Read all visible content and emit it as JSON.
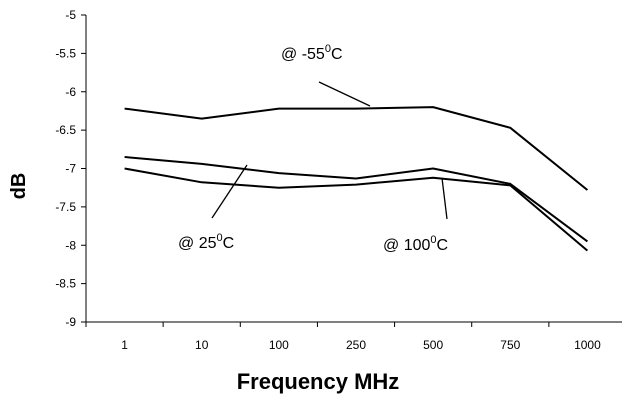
{
  "chart_data": {
    "type": "line",
    "title": "",
    "xlabel": "Frequency MHz",
    "ylabel": "dB",
    "categories": [
      "1",
      "10",
      "100",
      "250",
      "500",
      "750",
      "1000"
    ],
    "ylim": [
      -9,
      -5
    ],
    "yticks": [
      -5,
      -5.5,
      -6,
      -6.5,
      -7,
      -7.5,
      -8,
      -8.5,
      -9
    ],
    "ytick_labels": [
      "-5",
      "-5.5",
      "-6",
      "-6.5",
      "-7",
      "-7.5",
      "-8",
      "-8.5",
      "-9"
    ],
    "grid": false,
    "legend": "none",
    "series": [
      {
        "values": [
          -6.22,
          -6.35,
          -6.22,
          -6.22,
          -6.2,
          -6.47,
          -7.28
        ]
      },
      {
        "values": [
          -6.85,
          -6.94,
          -7.06,
          -7.13,
          -7.0,
          -7.2,
          -7.95
        ]
      },
      {
        "values": [
          -7.0,
          -7.18,
          -7.25,
          -7.21,
          -7.12,
          -7.22,
          -8.07
        ]
      }
    ],
    "annotations": [
      {
        "base": "@  -55",
        "sup": "0",
        "unit": "C",
        "series": 0
      },
      {
        "base": "@  25",
        "sup": "0",
        "unit": "C",
        "series": 1
      },
      {
        "base": "@  100",
        "sup": "0",
        "unit": "C",
        "series": 2
      }
    ]
  }
}
